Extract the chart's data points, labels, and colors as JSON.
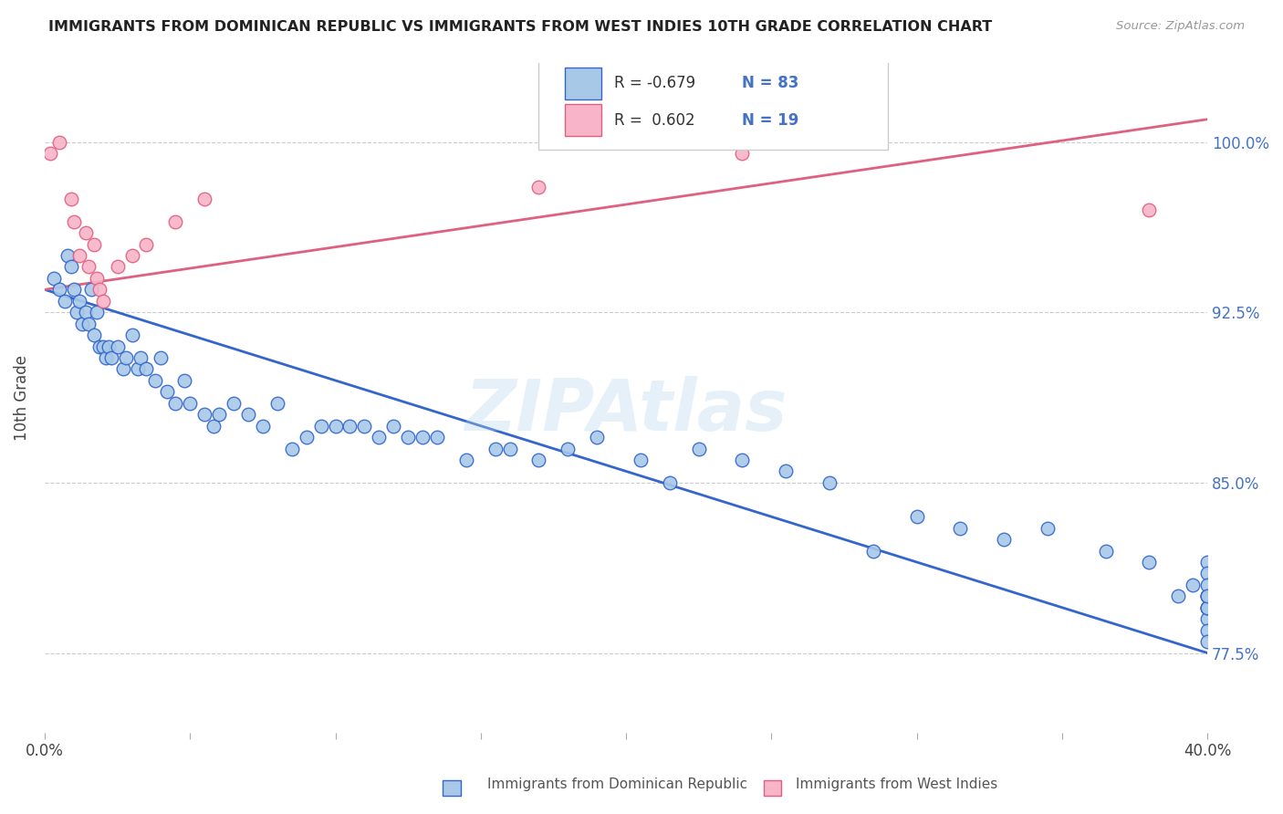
{
  "title": "IMMIGRANTS FROM DOMINICAN REPUBLIC VS IMMIGRANTS FROM WEST INDIES 10TH GRADE CORRELATION CHART",
  "source": "Source: ZipAtlas.com",
  "ylabel": "10th Grade",
  "y_ticks": [
    77.5,
    85.0,
    92.5,
    100.0
  ],
  "y_tick_labels": [
    "77.5%",
    "85.0%",
    "92.5%",
    "100.0%"
  ],
  "x_min": 0.0,
  "x_max": 40.0,
  "y_min": 74.0,
  "y_max": 103.5,
  "legend_r1": "-0.679",
  "legend_n1": "83",
  "legend_r2": "0.602",
  "legend_n2": "19",
  "color_blue": "#a8c8e8",
  "color_blue_line": "#3366cc",
  "color_pink": "#f8b4c8",
  "color_pink_line": "#e06080",
  "watermark": "ZIPAtlas",
  "blue_x": [
    0.3,
    0.5,
    0.7,
    0.8,
    0.9,
    1.0,
    1.1,
    1.2,
    1.3,
    1.4,
    1.5,
    1.6,
    1.7,
    1.8,
    1.9,
    2.0,
    2.1,
    2.2,
    2.3,
    2.5,
    2.7,
    2.8,
    3.0,
    3.2,
    3.3,
    3.5,
    3.8,
    4.0,
    4.2,
    4.5,
    4.8,
    5.0,
    5.5,
    5.8,
    6.0,
    6.5,
    7.0,
    7.5,
    8.0,
    8.5,
    9.0,
    9.5,
    10.0,
    10.5,
    11.0,
    11.5,
    12.0,
    12.5,
    13.0,
    13.5,
    14.5,
    15.5,
    16.0,
    17.0,
    18.0,
    19.0,
    20.5,
    21.5,
    22.5,
    24.0,
    25.5,
    27.0,
    28.5,
    30.0,
    31.5,
    33.0,
    34.5,
    36.5,
    38.0,
    39.0,
    39.5,
    40.0,
    40.0,
    40.0,
    40.0,
    40.0,
    40.0,
    40.0,
    40.0,
    40.0,
    40.0,
    40.0,
    40.0
  ],
  "blue_y": [
    94.0,
    93.5,
    93.0,
    95.0,
    94.5,
    93.5,
    92.5,
    93.0,
    92.0,
    92.5,
    92.0,
    93.5,
    91.5,
    92.5,
    91.0,
    91.0,
    90.5,
    91.0,
    90.5,
    91.0,
    90.0,
    90.5,
    91.5,
    90.0,
    90.5,
    90.0,
    89.5,
    90.5,
    89.0,
    88.5,
    89.5,
    88.5,
    88.0,
    87.5,
    88.0,
    88.5,
    88.0,
    87.5,
    88.5,
    86.5,
    87.0,
    87.5,
    87.5,
    87.5,
    87.5,
    87.0,
    87.5,
    87.0,
    87.0,
    87.0,
    86.0,
    86.5,
    86.5,
    86.0,
    86.5,
    87.0,
    86.0,
    85.0,
    86.5,
    86.0,
    85.5,
    85.0,
    82.0,
    83.5,
    83.0,
    82.5,
    83.0,
    82.0,
    81.5,
    80.0,
    80.5,
    80.0,
    81.5,
    80.0,
    79.5,
    79.0,
    81.0,
    80.5,
    79.5,
    78.5,
    79.5,
    78.0,
    80.0
  ],
  "pink_x": [
    0.2,
    0.5,
    0.9,
    1.0,
    1.2,
    1.4,
    1.5,
    1.7,
    1.8,
    1.9,
    2.0,
    2.5,
    3.0,
    3.5,
    4.5,
    5.5,
    17.0,
    24.0,
    38.0
  ],
  "pink_y": [
    99.5,
    100.0,
    97.5,
    96.5,
    95.0,
    96.0,
    94.5,
    95.5,
    94.0,
    93.5,
    93.0,
    94.5,
    95.0,
    95.5,
    96.5,
    97.5,
    98.0,
    99.5,
    97.0
  ],
  "blue_trendline_x": [
    0.0,
    40.0
  ],
  "blue_trendline_y": [
    93.5,
    77.5
  ],
  "pink_trendline_x": [
    0.0,
    40.0
  ],
  "pink_trendline_y": [
    93.5,
    101.0
  ]
}
